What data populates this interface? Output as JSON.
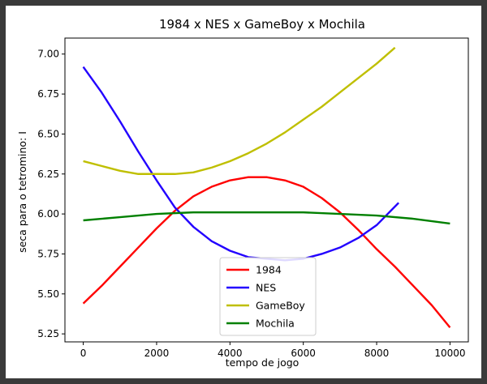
{
  "chart_data": {
    "type": "line",
    "title": "1984 x NES x GameBoy x Mochila",
    "xlabel": "tempo de jogo",
    "ylabel": "seca para o tetromino: I",
    "xlim": [
      -500,
      10500
    ],
    "ylim": [
      5.2,
      7.1
    ],
    "xticks": [
      0,
      2000,
      4000,
      6000,
      8000,
      10000
    ],
    "xtick_labels": [
      "0",
      "2000",
      "4000",
      "6000",
      "8000",
      "10000"
    ],
    "yticks": [
      5.25,
      5.5,
      5.75,
      6.0,
      6.25,
      6.5,
      6.75,
      7.0
    ],
    "ytick_labels": [
      "5.25",
      "5.50",
      "5.75",
      "6.00",
      "6.25",
      "6.50",
      "6.75",
      "7.00"
    ],
    "grid": false,
    "legend_position": "lower-center",
    "series": [
      {
        "name": "1984",
        "color": "#ff0000",
        "x": [
          0,
          500,
          1000,
          1500,
          2000,
          2500,
          3000,
          3500,
          4000,
          4500,
          5000,
          5500,
          6000,
          6500,
          7000,
          7500,
          8000,
          8500,
          9000,
          9500,
          10000
        ],
        "y": [
          5.44,
          5.55,
          5.67,
          5.79,
          5.91,
          6.02,
          6.11,
          6.17,
          6.21,
          6.23,
          6.23,
          6.21,
          6.17,
          6.1,
          6.01,
          5.9,
          5.78,
          5.67,
          5.55,
          5.43,
          5.29
        ]
      },
      {
        "name": "NES",
        "color": "#2200ff",
        "x": [
          0,
          500,
          1000,
          1500,
          2000,
          2500,
          3000,
          3500,
          4000,
          4500,
          5000,
          5500,
          6000,
          6500,
          7000,
          7500,
          8000,
          8600
        ],
        "y": [
          6.92,
          6.76,
          6.58,
          6.39,
          6.21,
          6.04,
          5.92,
          5.83,
          5.77,
          5.73,
          5.72,
          5.71,
          5.72,
          5.75,
          5.79,
          5.85,
          5.93,
          6.07
        ]
      },
      {
        "name": "GameBoy",
        "color": "#bfbf00",
        "x": [
          0,
          500,
          1000,
          1500,
          2000,
          2500,
          3000,
          3500,
          4000,
          4500,
          5000,
          5500,
          6000,
          6500,
          7000,
          7500,
          8000,
          8500
        ],
        "y": [
          6.33,
          6.3,
          6.27,
          6.25,
          6.25,
          6.25,
          6.26,
          6.29,
          6.33,
          6.38,
          6.44,
          6.51,
          6.59,
          6.67,
          6.76,
          6.85,
          6.94,
          7.04
        ]
      },
      {
        "name": "Mochila",
        "color": "#008000",
        "x": [
          0,
          1000,
          2000,
          3000,
          4000,
          5000,
          6000,
          7000,
          8000,
          9000,
          10000
        ],
        "y": [
          5.96,
          5.98,
          6.0,
          6.01,
          6.01,
          6.01,
          6.01,
          6.0,
          5.99,
          5.97,
          5.94
        ]
      }
    ]
  }
}
